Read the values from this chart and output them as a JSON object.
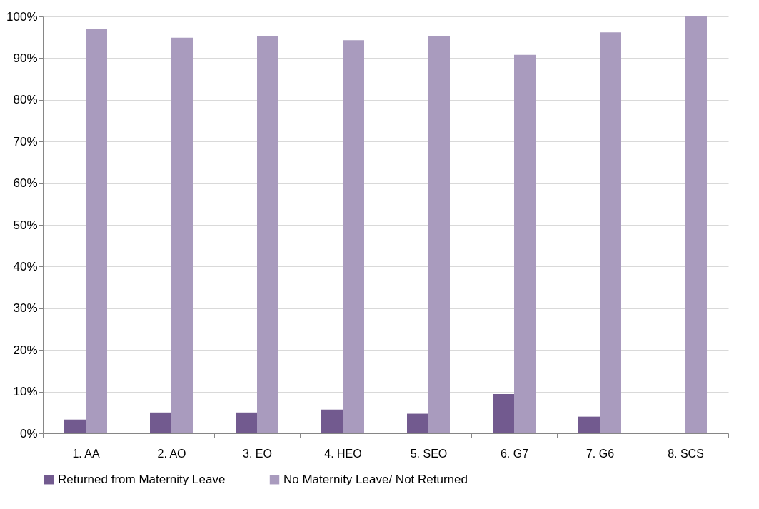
{
  "chart_data": {
    "type": "bar",
    "categories": [
      "1. AA",
      "2. AO",
      "3. EO",
      "4. HEO",
      "5. SEO",
      "6. G7",
      "7. G6",
      "8. SCS"
    ],
    "series": [
      {
        "name": "Returned from Maternity Leave",
        "color": "#725a8f",
        "values": [
          3.3,
          5.0,
          5.0,
          5.7,
          4.7,
          9.4,
          4.0,
          0
        ]
      },
      {
        "name": "No Maternity Leave/ Not Returned",
        "color": "#a99bbe",
        "values": [
          96.9,
          94.9,
          95.2,
          94.3,
          95.2,
          90.8,
          96.2,
          100
        ]
      }
    ],
    "ylim": [
      0,
      100
    ],
    "yticks": [
      {
        "value": 0,
        "label": "0%"
      },
      {
        "value": 10,
        "label": "10%"
      },
      {
        "value": 20,
        "label": "20%"
      },
      {
        "value": 30,
        "label": "30%"
      },
      {
        "value": 40,
        "label": "40%"
      },
      {
        "value": 50,
        "label": "50%"
      },
      {
        "value": 60,
        "label": "60%"
      },
      {
        "value": 70,
        "label": "70%"
      },
      {
        "value": 80,
        "label": "80%"
      },
      {
        "value": 90,
        "label": "90%"
      },
      {
        "value": 100,
        "label": "100%"
      }
    ],
    "grid": "y",
    "legend": "bottom"
  }
}
